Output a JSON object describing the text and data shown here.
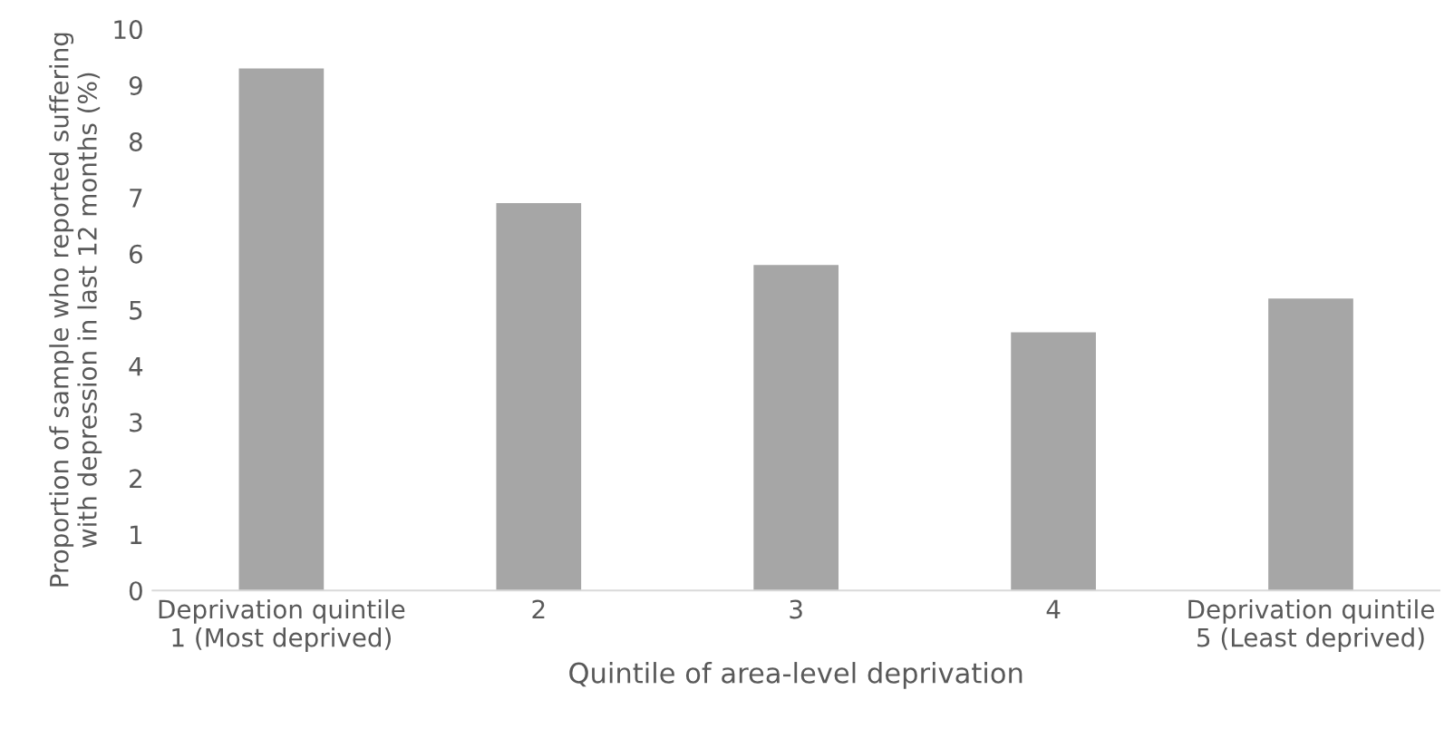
{
  "chart_data": {
    "type": "bar",
    "xlabel": "Quintile of area-level deprivation",
    "ylabel": "Proportion of sample who reported suffering\nwith depression in last 12 months (%)",
    "categories": [
      "Deprivation quintile\n1 (Most deprived)",
      "2",
      "3",
      "4",
      "Deprivation quintile\n5 (Least deprived)"
    ],
    "values": [
      9.3,
      6.9,
      5.8,
      4.6,
      5.2
    ],
    "color": "#a6a6a6",
    "ylim": [
      0,
      10
    ],
    "yticks": [
      0,
      1,
      2,
      3,
      4,
      5,
      6,
      7,
      8,
      9,
      10
    ],
    "grid": false,
    "legend": false
  }
}
